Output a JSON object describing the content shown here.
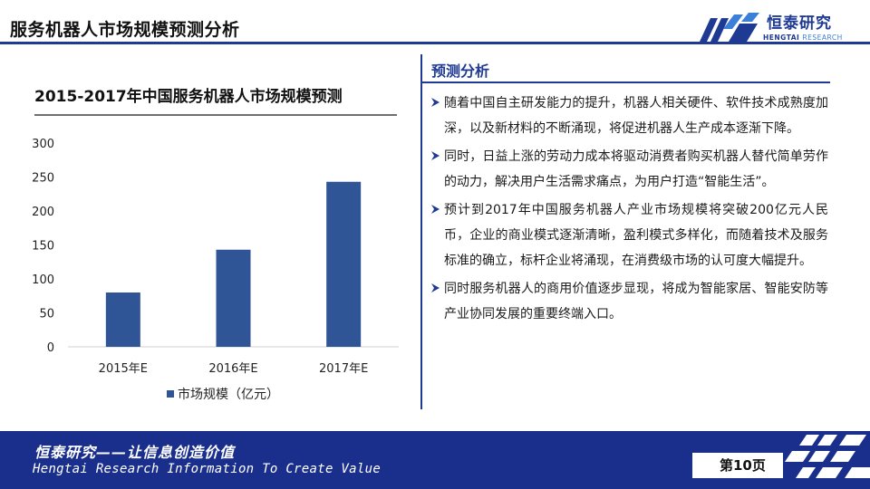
{
  "header": {
    "title": "服务机器人市场规模预测分析",
    "logo_cn": "恒泰研究",
    "logo_en_main": "HENGTAI",
    "logo_en_sub": "RESEARCH"
  },
  "colors": {
    "brand": "#1f3a93",
    "bar": "#2f5597",
    "footer": "#1a2f8c"
  },
  "chart_data": {
    "type": "bar",
    "title": "2015-2017年中国服务机器人市场规模预测",
    "categories": [
      "2015年E",
      "2016年E",
      "2017年E"
    ],
    "series": [
      {
        "name": "市场规模（亿元）",
        "values": [
          80,
          143,
          243
        ],
        "color": "#2f5597"
      }
    ],
    "ylim": [
      0,
      300
    ],
    "yticks": [
      0,
      50,
      100,
      150,
      200,
      250,
      300
    ],
    "xlabel": "",
    "ylabel": "",
    "grid": false,
    "legend": "bottom"
  },
  "analysis": {
    "title": "预测分析",
    "items": [
      "随着中国自主研发能力的提升，机器人相关硬件、软件技术成熟度加深，以及新材料的不断涌现，将促进机器人生产成本逐渐下降。",
      "同时，日益上涨的劳动力成本将驱动消费者购买机器人替代简单劳作的动力，解决用户生活需求痛点，为用户打造“智能生活”。",
      "预计到2017年中国服务机器人产业市场规模将突破200亿元人民币，企业的商业模式逐渐清晰，盈利模式多样化，而随着技术及服务标准的确立，标杆企业将涌现，在消费级市场的认可度大幅提升。",
      "同时服务机器人的商用价值逐步显现，将成为智能家居、智能安防等产业协同发展的重要终端入口。"
    ]
  },
  "footer": {
    "slogan_cn": "恒泰研究——让信息创造价值",
    "slogan_en": "Hengtai Research Information To Create Value",
    "page_label": "第10页"
  }
}
